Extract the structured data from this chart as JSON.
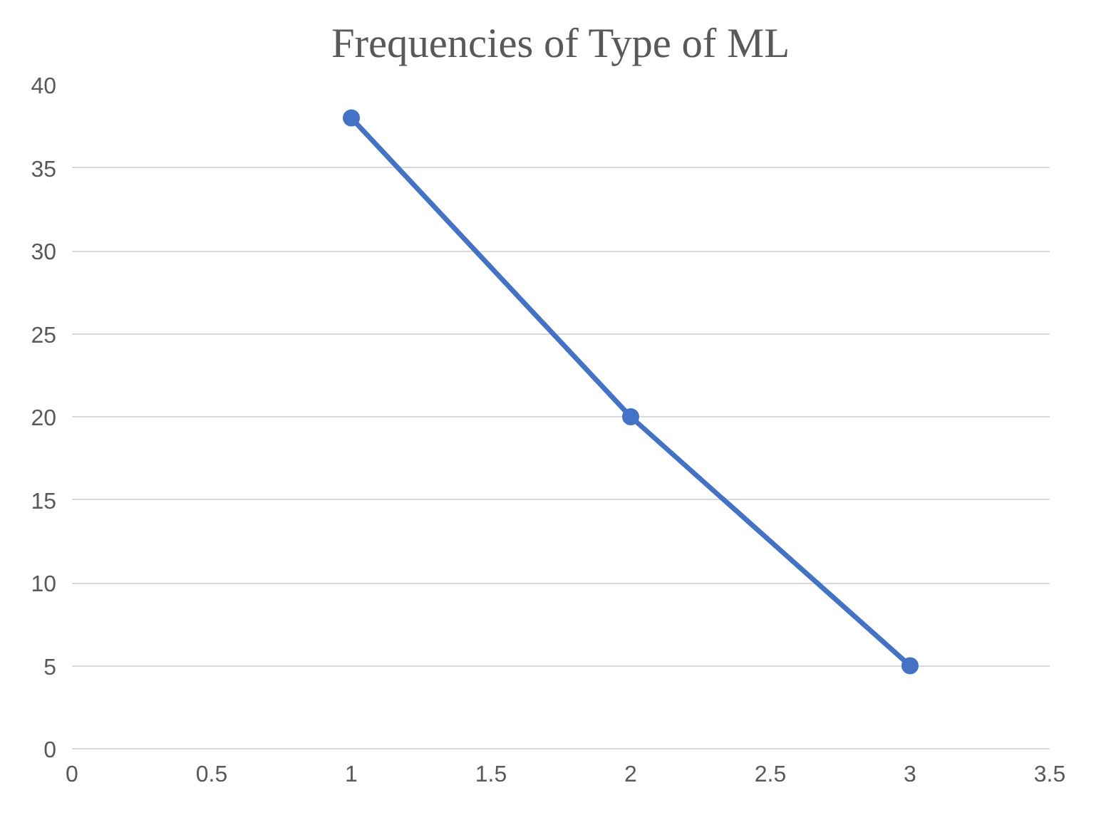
{
  "chart_data": {
    "type": "line",
    "title": "Frequencies of Type of ML",
    "x": [
      1,
      2,
      3
    ],
    "series": [
      {
        "color": "#4472c4",
        "values": [
          38,
          20,
          5
        ]
      }
    ],
    "xlim": [
      0,
      3.5
    ],
    "xticks": [
      0,
      {
        "value": 0.5,
        "label": "0.5"
      },
      1,
      {
        "value": 1.5,
        "label": "1.5"
      },
      2,
      {
        "value": 2.5,
        "label": "2.5"
      },
      3,
      {
        "value": 3.5,
        "label": "3.5"
      }
    ],
    "ylim": [
      0,
      40
    ],
    "yticks": [
      0,
      5,
      10,
      15,
      20,
      25,
      30,
      35,
      40
    ],
    "grid": "y",
    "marker": "circle",
    "line_style": "solid"
  }
}
